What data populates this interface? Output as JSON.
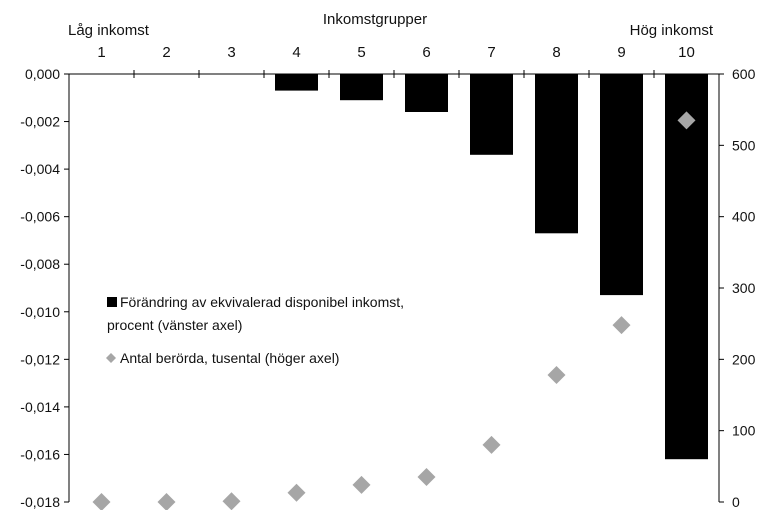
{
  "chart_data": {
    "type": "bar",
    "xlabel": "Inkomstgrupper",
    "x_end_labels": {
      "low": "Låg inkomst",
      "high": "Hög inkomst"
    },
    "categories": [
      "1",
      "2",
      "3",
      "4",
      "5",
      "6",
      "7",
      "8",
      "9",
      "10"
    ],
    "series": [
      {
        "name": "Förändring av ekvivalerad disponibel inkomst, procent (vänster axel)",
        "type": "bar",
        "axis": "left",
        "color": "#000000",
        "values": [
          0.0,
          0.0,
          -2e-05,
          -0.0007,
          -0.0011,
          -0.0016,
          -0.0034,
          -0.0067,
          -0.0093,
          -0.0162
        ]
      },
      {
        "name": "Antal berörda, tusental (höger axel)",
        "type": "scatter",
        "axis": "right",
        "color": "#a6a6a6",
        "marker": "diamond",
        "values": [
          0,
          0,
          1,
          13,
          24,
          35,
          80,
          178,
          248,
          535
        ]
      }
    ],
    "left_axis": {
      "min": -0.018,
      "max": 0.0,
      "ticks": [
        "0,000",
        "-0,002",
        "-0,004",
        "-0,006",
        "-0,008",
        "-0,010",
        "-0,012",
        "-0,014",
        "-0,016",
        "-0,018"
      ]
    },
    "right_axis": {
      "min": 0,
      "max": 600,
      "ticks": [
        "0",
        "100",
        "200",
        "300",
        "400",
        "500",
        "600"
      ]
    },
    "legend": {
      "placement": "left-middle",
      "line1": "Förändring av ekvivalerad disponibel inkomst,",
      "line2": "procent (vänster axel)",
      "line3": "Antal berörda, tusental (höger axel)"
    },
    "grid": false
  }
}
